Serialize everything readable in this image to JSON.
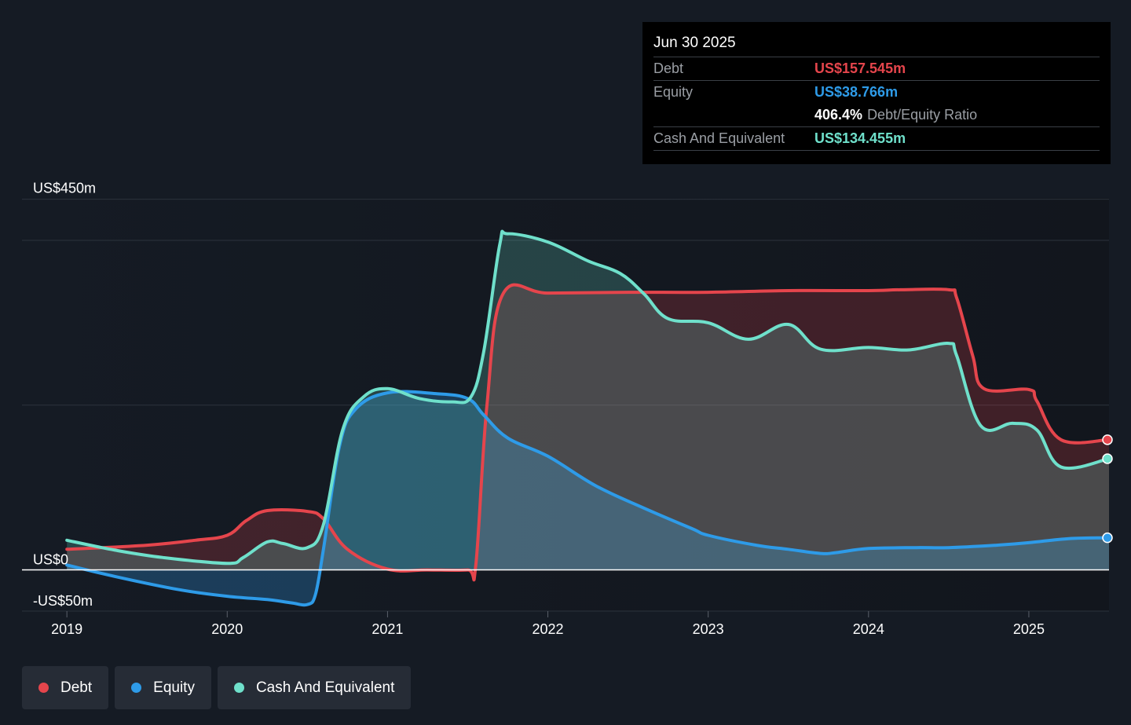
{
  "tooltip": {
    "date": "Jun 30 2025",
    "debt_label": "Debt",
    "debt_value": "US$157.545m",
    "equity_label": "Equity",
    "equity_value": "US$38.766m",
    "ratio_value": "406.4%",
    "ratio_label": "Debt/Equity Ratio",
    "cash_label": "Cash And Equivalent",
    "cash_value": "US$134.455m"
  },
  "legend": [
    {
      "label": "Debt",
      "color": "#e5454c"
    },
    {
      "label": "Equity",
      "color": "#2e9be8"
    },
    {
      "label": "Cash And Equivalent",
      "color": "#6fe0cb"
    }
  ],
  "chart_data": {
    "type": "area",
    "title": "",
    "xlabel": "",
    "ylabel": "",
    "ylim": [
      -50,
      450
    ],
    "y_ticks": [
      -50,
      0,
      450
    ],
    "y_tick_labels": [
      "-US$50m",
      "US$0",
      "US$450m"
    ],
    "gridlines": [
      450,
      400,
      200
    ],
    "x_ticks": [
      2019,
      2020,
      2021,
      2022,
      2023,
      2024,
      2025
    ],
    "x_tick_labels": [
      "2019",
      "2020",
      "2021",
      "2022",
      "2023",
      "2024",
      "2025"
    ],
    "xlim": [
      2018.72,
      2025.5
    ],
    "legend_position": "bottom-left",
    "grid": true,
    "series": [
      {
        "name": "Debt",
        "color": "#e5454c",
        "points": [
          [
            2019.0,
            25
          ],
          [
            2019.5,
            30
          ],
          [
            2019.8,
            36
          ],
          [
            2020.0,
            42
          ],
          [
            2020.12,
            60
          ],
          [
            2020.25,
            72
          ],
          [
            2020.5,
            71
          ],
          [
            2020.6,
            62
          ],
          [
            2020.75,
            25
          ],
          [
            2021.0,
            1
          ],
          [
            2021.25,
            0
          ],
          [
            2021.5,
            0
          ],
          [
            2021.55,
            5
          ],
          [
            2021.62,
            200
          ],
          [
            2021.72,
            335
          ],
          [
            2022.0,
            336
          ],
          [
            2022.5,
            337
          ],
          [
            2023.0,
            337
          ],
          [
            2023.5,
            339
          ],
          [
            2024.0,
            339
          ],
          [
            2024.2,
            340
          ],
          [
            2024.5,
            340
          ],
          [
            2024.55,
            330
          ],
          [
            2024.65,
            260
          ],
          [
            2024.72,
            220
          ],
          [
            2025.0,
            219
          ],
          [
            2025.05,
            205
          ],
          [
            2025.2,
            158
          ],
          [
            2025.5,
            158
          ]
        ]
      },
      {
        "name": "Equity",
        "color": "#2e9be8",
        "points": [
          [
            2019.0,
            6
          ],
          [
            2019.3,
            -8
          ],
          [
            2019.7,
            -24
          ],
          [
            2020.0,
            -32
          ],
          [
            2020.25,
            -36
          ],
          [
            2020.4,
            -40
          ],
          [
            2020.5,
            -42
          ],
          [
            2020.55,
            -30
          ],
          [
            2020.6,
            25
          ],
          [
            2020.7,
            150
          ],
          [
            2020.8,
            195
          ],
          [
            2021.0,
            215
          ],
          [
            2021.3,
            214
          ],
          [
            2021.5,
            208
          ],
          [
            2021.6,
            188
          ],
          [
            2021.75,
            160
          ],
          [
            2022.0,
            138
          ],
          [
            2022.3,
            102
          ],
          [
            2022.6,
            75
          ],
          [
            2022.9,
            50
          ],
          [
            2023.0,
            42
          ],
          [
            2023.3,
            30
          ],
          [
            2023.5,
            25
          ],
          [
            2023.7,
            20
          ],
          [
            2023.8,
            21
          ],
          [
            2024.0,
            26
          ],
          [
            2024.3,
            27
          ],
          [
            2024.5,
            27
          ],
          [
            2024.8,
            30
          ],
          [
            2025.0,
            33
          ],
          [
            2025.25,
            38
          ],
          [
            2025.5,
            39
          ]
        ]
      },
      {
        "name": "Cash And Equivalent",
        "color": "#6fe0cb",
        "points": [
          [
            2019.0,
            36
          ],
          [
            2019.3,
            24
          ],
          [
            2019.6,
            15
          ],
          [
            2020.0,
            8
          ],
          [
            2020.1,
            15
          ],
          [
            2020.25,
            34
          ],
          [
            2020.35,
            32
          ],
          [
            2020.5,
            27
          ],
          [
            2020.6,
            55
          ],
          [
            2020.72,
            170
          ],
          [
            2020.85,
            210
          ],
          [
            2021.0,
            220
          ],
          [
            2021.2,
            208
          ],
          [
            2021.4,
            204
          ],
          [
            2021.52,
            210
          ],
          [
            2021.6,
            265
          ],
          [
            2021.7,
            395
          ],
          [
            2021.75,
            408
          ],
          [
            2022.0,
            398
          ],
          [
            2022.25,
            375
          ],
          [
            2022.45,
            360
          ],
          [
            2022.6,
            335
          ],
          [
            2022.75,
            305
          ],
          [
            2023.0,
            300
          ],
          [
            2023.25,
            280
          ],
          [
            2023.5,
            298
          ],
          [
            2023.7,
            268
          ],
          [
            2024.0,
            270
          ],
          [
            2024.25,
            267
          ],
          [
            2024.5,
            275
          ],
          [
            2024.55,
            260
          ],
          [
            2024.7,
            175
          ],
          [
            2024.9,
            178
          ],
          [
            2025.05,
            170
          ],
          [
            2025.2,
            125
          ],
          [
            2025.5,
            135
          ]
        ]
      }
    ]
  }
}
